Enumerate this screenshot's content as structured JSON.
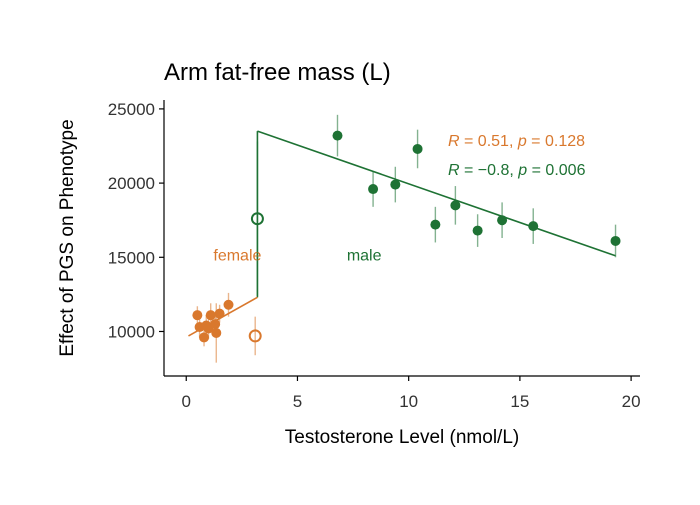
{
  "chart_data": {
    "type": "scatter",
    "title": "Arm fat-free mass (L)",
    "xlabel": "Testosterone Level (nmol/L)",
    "ylabel": "Effect of PGS on Phenotype",
    "xlim": [
      -1,
      20.4
    ],
    "ylim": [
      7000,
      25600
    ],
    "xticks": [
      0,
      5,
      10,
      15,
      20
    ],
    "yticks": [
      10000,
      15000,
      20000,
      25000
    ],
    "grid": false,
    "legend": "none",
    "colors": {
      "female": "#D9782D",
      "male": "#1E7234",
      "axis": "#000000",
      "text": "#333333"
    },
    "series": [
      {
        "name": "female",
        "color": "#D9782D",
        "label": "female",
        "label_pos": [
          2.3,
          14800
        ],
        "points": [
          {
            "x": 0.5,
            "y": 11100,
            "err": 600
          },
          {
            "x": 0.6,
            "y": 10300,
            "err": 700
          },
          {
            "x": 0.8,
            "y": 9600,
            "err": 600
          },
          {
            "x": 0.9,
            "y": 10400,
            "err": 700
          },
          {
            "x": 1.0,
            "y": 10200,
            "err": 700
          },
          {
            "x": 1.1,
            "y": 11100,
            "err": 800
          },
          {
            "x": 1.3,
            "y": 10500,
            "err": 800
          },
          {
            "x": 1.35,
            "y": 9900,
            "err": 2000
          },
          {
            "x": 1.5,
            "y": 11200,
            "err": 600
          },
          {
            "x": 1.9,
            "y": 11800,
            "err": 800
          }
        ],
        "outlier": {
          "x": 3.1,
          "y": 9700,
          "err": 1300,
          "hollow": true
        },
        "fit": {
          "x": [
            0.1,
            3.2
          ],
          "y": [
            9700,
            12300
          ]
        },
        "stat": {
          "R": "0.51",
          "p": "0.128"
        }
      },
      {
        "name": "male",
        "color": "#1E7234",
        "label": "male",
        "label_pos": [
          8.0,
          14800
        ],
        "points": [
          {
            "x": 6.8,
            "y": 23200,
            "err": 1400
          },
          {
            "x": 8.4,
            "y": 19600,
            "err": 1200
          },
          {
            "x": 9.4,
            "y": 19900,
            "err": 1200
          },
          {
            "x": 10.4,
            "y": 22300,
            "err": 1300
          },
          {
            "x": 11.2,
            "y": 17200,
            "err": 1200
          },
          {
            "x": 12.1,
            "y": 18500,
            "err": 1300
          },
          {
            "x": 13.1,
            "y": 16800,
            "err": 1100
          },
          {
            "x": 14.2,
            "y": 17500,
            "err": 1200
          },
          {
            "x": 15.6,
            "y": 17100,
            "err": 1200
          },
          {
            "x": 19.3,
            "y": 16100,
            "err": 1100
          }
        ],
        "outlier": {
          "x": 3.2,
          "y": 17600,
          "err": 5200,
          "hollow": true
        },
        "fit": {
          "x": [
            3.2,
            19.3
          ],
          "y": [
            23500,
            15100
          ]
        },
        "stat": {
          "R": "−0.8",
          "p": "0.006"
        }
      }
    ],
    "connector": {
      "x": [
        3.2,
        3.2
      ],
      "y": [
        12300,
        23500
      ]
    }
  }
}
